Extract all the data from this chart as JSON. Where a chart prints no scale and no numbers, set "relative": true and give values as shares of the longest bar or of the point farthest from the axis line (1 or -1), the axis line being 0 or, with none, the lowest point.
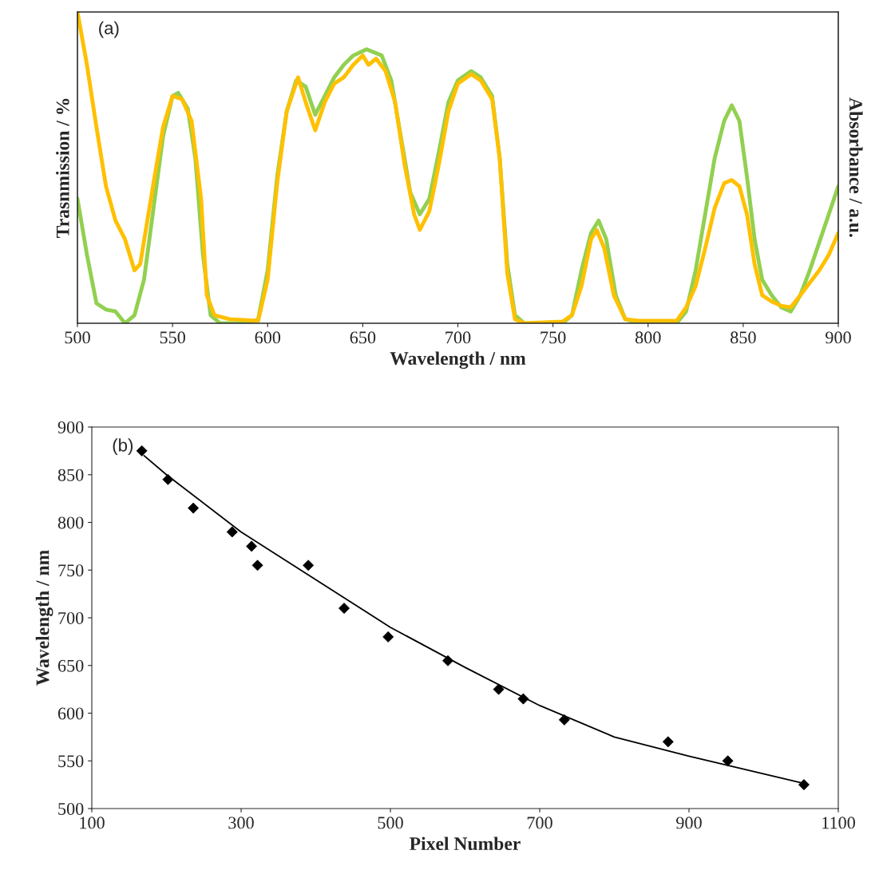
{
  "chart_data": [
    {
      "type": "line",
      "relative": true,
      "xlabel": "Wavelength / nm",
      "ylabel": "Trasnmission / %",
      "y2label": "Absorbance / a.u.",
      "annotations": [
        "(a)"
      ],
      "xlim": [
        500,
        900
      ],
      "xticks": [
        500,
        550,
        600,
        650,
        700,
        750,
        800,
        850,
        900
      ],
      "tick_labels": "x",
      "grid": false,
      "legend": false,
      "series": [
        {
          "color": "#92d050",
          "x": [
            500,
            505,
            510,
            515,
            520,
            525,
            530,
            535,
            540,
            545,
            550,
            553,
            558,
            562,
            566,
            570,
            575,
            590,
            595,
            600,
            605,
            610,
            615,
            620,
            625,
            630,
            635,
            640,
            645,
            652,
            660,
            665,
            670,
            675,
            680,
            685,
            690,
            695,
            700,
            707,
            712,
            718,
            722,
            726,
            730,
            735,
            755,
            760,
            765,
            770,
            774,
            778,
            783,
            788,
            795,
            815,
            820,
            825,
            830,
            835,
            840,
            844,
            848,
            852,
            856,
            860,
            865,
            870,
            875,
            880,
            885,
            890,
            895,
            900
          ],
          "values": [
            0.4,
            0.22,
            0.064,
            0.044,
            0.038,
            0,
            0.026,
            0.14,
            0.37,
            0.6,
            0.73,
            0.74,
            0.69,
            0.53,
            0.22,
            0.026,
            0,
            0,
            0.013,
            0.17,
            0.47,
            0.68,
            0.78,
            0.76,
            0.67,
            0.73,
            0.79,
            0.83,
            0.86,
            0.88,
            0.86,
            0.78,
            0.6,
            0.42,
            0.35,
            0.4,
            0.55,
            0.71,
            0.78,
            0.81,
            0.79,
            0.73,
            0.53,
            0.19,
            0.026,
            0,
            0,
            0.026,
            0.17,
            0.29,
            0.33,
            0.27,
            0.09,
            0.013,
            0,
            0,
            0.038,
            0.17,
            0.35,
            0.53,
            0.65,
            0.7,
            0.65,
            0.47,
            0.27,
            0.14,
            0.09,
            0.051,
            0.038,
            0.09,
            0.17,
            0.26,
            0.35,
            0.44
          ]
        },
        {
          "color": "#ffc000",
          "x": [
            500,
            505,
            510,
            515,
            520,
            525,
            530,
            533,
            540,
            545,
            550,
            555,
            560,
            565,
            568,
            572,
            580,
            595,
            600,
            605,
            610,
            616,
            620,
            625,
            630,
            635,
            640,
            645,
            650,
            653,
            657,
            662,
            667,
            672,
            677,
            680,
            685,
            690,
            695,
            700,
            707,
            712,
            718,
            722,
            726,
            730,
            735,
            755,
            760,
            765,
            770,
            773,
            777,
            782,
            788,
            795,
            815,
            820,
            825,
            830,
            835,
            840,
            844,
            848,
            852,
            856,
            860,
            865,
            870,
            875,
            880,
            885,
            890,
            895,
            900
          ],
          "values": [
            1.0,
            0.83,
            0.63,
            0.44,
            0.33,
            0.27,
            0.17,
            0.19,
            0.45,
            0.63,
            0.73,
            0.72,
            0.65,
            0.4,
            0.09,
            0.026,
            0.013,
            0.008,
            0.14,
            0.45,
            0.68,
            0.79,
            0.71,
            0.62,
            0.71,
            0.77,
            0.79,
            0.83,
            0.86,
            0.83,
            0.85,
            0.81,
            0.71,
            0.51,
            0.35,
            0.3,
            0.36,
            0.51,
            0.68,
            0.77,
            0.8,
            0.78,
            0.72,
            0.53,
            0.16,
            0.013,
            0,
            0.005,
            0.026,
            0.12,
            0.27,
            0.3,
            0.24,
            0.09,
            0.013,
            0.008,
            0.008,
            0.051,
            0.12,
            0.24,
            0.37,
            0.45,
            0.46,
            0.44,
            0.35,
            0.19,
            0.09,
            0.07,
            0.056,
            0.051,
            0.09,
            0.13,
            0.17,
            0.22,
            0.29
          ]
        }
      ]
    },
    {
      "type": "scatter",
      "xlabel": "Pixel Number",
      "ylabel": "Wavelength / nm",
      "annotations": [
        "(b)"
      ],
      "xlim": [
        100,
        1100
      ],
      "xticks": [
        100,
        300,
        500,
        700,
        900,
        1100
      ],
      "ylim": [
        500,
        900
      ],
      "yticks": [
        500,
        550,
        600,
        650,
        700,
        750,
        800,
        850,
        900
      ],
      "grid": false,
      "legend": false,
      "series": [
        {
          "color": "#000000",
          "marker": "diamond",
          "x": [
            167,
            202,
            236,
            288,
            314,
            322,
            390,
            438,
            497,
            577,
            645,
            678,
            733,
            872,
            952,
            1054
          ],
          "values": [
            875,
            845,
            815,
            790,
            775,
            755,
            755,
            710,
            680,
            655,
            625,
            615,
            593,
            570,
            550,
            525
          ]
        },
        {
          "type": "line",
          "color": "#000000",
          "marker": "none",
          "x": [
            170,
            200,
            300,
            400,
            500,
            600,
            700,
            800,
            900,
            1050
          ],
          "values": [
            870,
            850,
            790,
            740,
            690,
            648,
            608,
            575,
            555,
            527
          ]
        }
      ]
    }
  ]
}
